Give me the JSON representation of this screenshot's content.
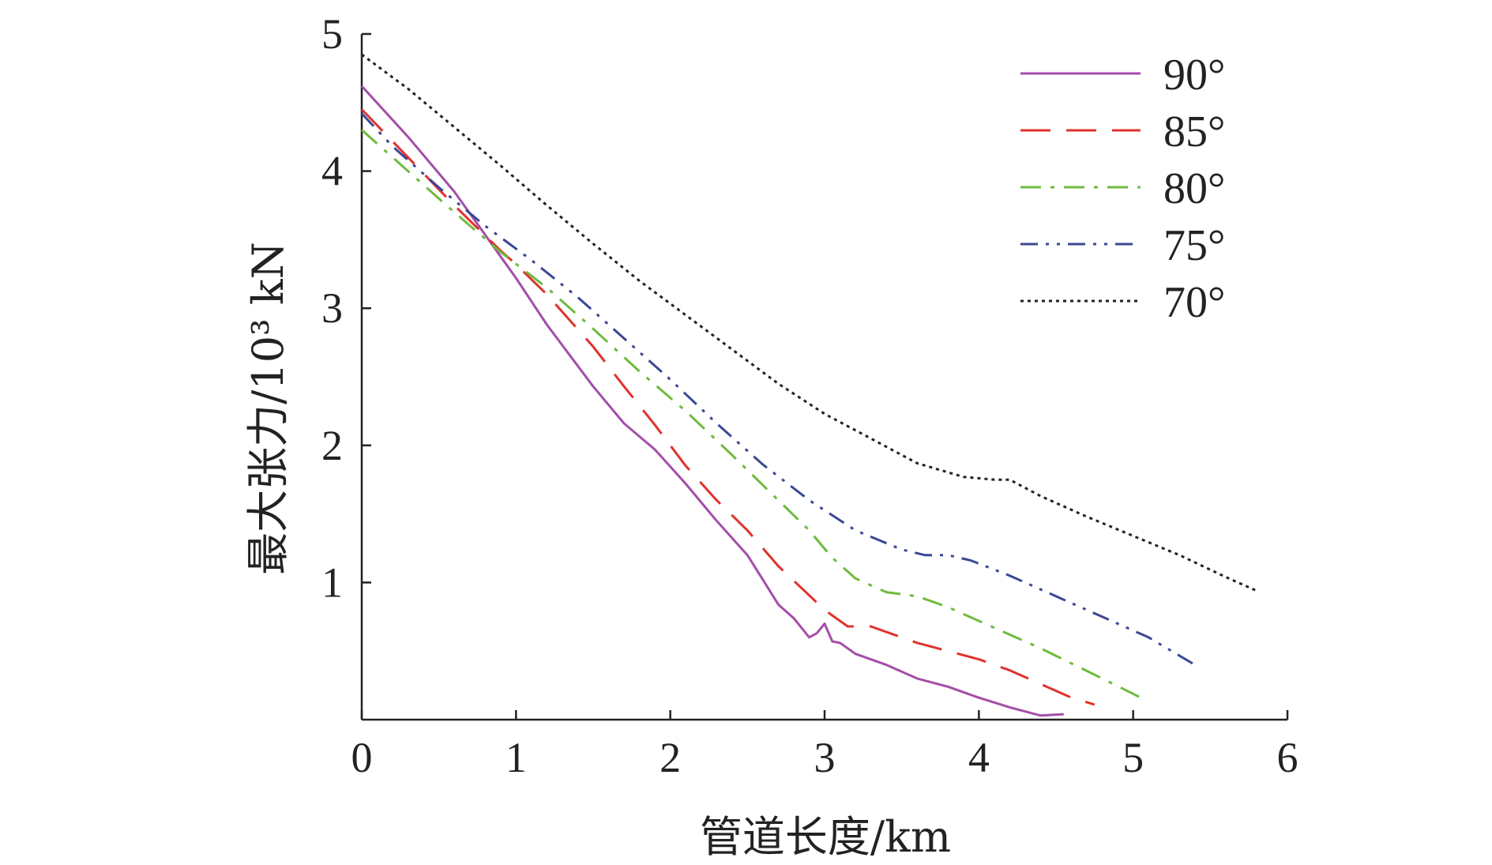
{
  "chart_data": {
    "type": "line",
    "title": "",
    "xlabel": "管道长度/km",
    "ylabel": "最大张力/10³ kN",
    "xlim": [
      0,
      6
    ],
    "ylim": [
      0,
      5
    ],
    "xticks": [
      "0",
      "1",
      "2",
      "3",
      "4",
      "5",
      "6"
    ],
    "yticks": [
      "1",
      "2",
      "3",
      "4",
      "5"
    ],
    "grid": false,
    "legend": "top-right",
    "series": [
      {
        "name": "90°",
        "color": "#a44ea8",
        "dash": "solid",
        "x": [
          0,
          0.3,
          0.6,
          1.0,
          1.2,
          1.5,
          1.7,
          1.9,
          2.1,
          2.3,
          2.5,
          2.6,
          2.7,
          2.8,
          2.9,
          2.95,
          3.0,
          3.05,
          3.1,
          3.2,
          3.4,
          3.6,
          3.8,
          4.0,
          4.2,
          4.4,
          4.55
        ],
        "y": [
          4.62,
          4.25,
          3.85,
          3.22,
          2.88,
          2.43,
          2.16,
          1.97,
          1.72,
          1.45,
          1.2,
          1.02,
          0.84,
          0.74,
          0.6,
          0.63,
          0.7,
          0.57,
          0.56,
          0.48,
          0.4,
          0.3,
          0.24,
          0.16,
          0.09,
          0.03,
          0.04
        ]
      },
      {
        "name": "85°",
        "color": "#e0322d",
        "dash": "long-dash",
        "x": [
          0,
          0.3,
          0.6,
          0.9,
          1.0,
          1.2,
          1.5,
          1.7,
          1.9,
          2.1,
          2.3,
          2.5,
          2.7,
          2.85,
          3.0,
          3.15,
          3.3,
          3.45,
          3.6,
          3.8,
          4.0,
          4.2,
          4.4,
          4.6,
          4.75
        ],
        "y": [
          4.45,
          4.1,
          3.75,
          3.42,
          3.32,
          3.1,
          2.72,
          2.43,
          2.15,
          1.85,
          1.6,
          1.38,
          1.12,
          0.96,
          0.8,
          0.68,
          0.68,
          0.62,
          0.56,
          0.5,
          0.44,
          0.36,
          0.26,
          0.16,
          0.11
        ]
      },
      {
        "name": "80°",
        "color": "#6fbb3f",
        "dash": "dash-dot",
        "x": [
          0,
          0.3,
          0.6,
          0.9,
          1.2,
          1.5,
          1.8,
          2.1,
          2.4,
          2.7,
          2.9,
          3.05,
          3.2,
          3.4,
          3.6,
          3.8,
          4.0,
          4.2,
          4.4,
          4.6,
          4.8,
          5.05
        ],
        "y": [
          4.3,
          4.0,
          3.7,
          3.41,
          3.15,
          2.85,
          2.54,
          2.25,
          1.93,
          1.6,
          1.38,
          1.18,
          1.03,
          0.93,
          0.9,
          0.82,
          0.72,
          0.62,
          0.52,
          0.41,
          0.3,
          0.16
        ]
      },
      {
        "name": "75°",
        "color": "#3a4894",
        "dash": "dash-dot-dot",
        "x": [
          0,
          0.2,
          0.5,
          0.8,
          1.1,
          1.4,
          1.7,
          2.0,
          2.3,
          2.6,
          2.9,
          3.2,
          3.5,
          3.65,
          3.8,
          3.95,
          4.2,
          4.5,
          4.8,
          5.1,
          5.4
        ],
        "y": [
          4.42,
          4.18,
          3.88,
          3.6,
          3.35,
          3.08,
          2.78,
          2.48,
          2.16,
          1.86,
          1.6,
          1.38,
          1.24,
          1.2,
          1.2,
          1.16,
          1.05,
          0.9,
          0.75,
          0.6,
          0.4
        ]
      },
      {
        "name": "70°",
        "color": "#222222",
        "dash": "dotted",
        "x": [
          0,
          0.3,
          0.6,
          0.9,
          1.2,
          1.5,
          1.8,
          2.1,
          2.4,
          2.7,
          3.0,
          3.3,
          3.6,
          3.9,
          4.1,
          4.2,
          4.4,
          4.7,
          5.0,
          5.3,
          5.6,
          5.8
        ],
        "y": [
          4.85,
          4.6,
          4.32,
          4.04,
          3.75,
          3.47,
          3.2,
          2.95,
          2.7,
          2.45,
          2.23,
          2.05,
          1.87,
          1.77,
          1.75,
          1.75,
          1.63,
          1.48,
          1.34,
          1.2,
          1.04,
          0.94
        ]
      }
    ]
  }
}
